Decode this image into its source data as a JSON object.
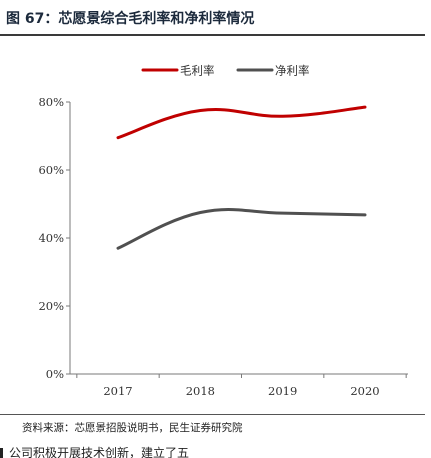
{
  "figure": {
    "title": "图 67：芯愿景综合毛利率和净利率情况",
    "source": "资料来源：芯愿景招股说明书，民生证券研究院",
    "next_heading": "公司积极开展技术创新，建立了五"
  },
  "chart_data": {
    "type": "line",
    "title": "",
    "xlabel": "",
    "ylabel": "",
    "categories": [
      "2017",
      "2018",
      "2019",
      "2020"
    ],
    "y_ticks": [
      "0%",
      "20%",
      "40%",
      "60%",
      "80%"
    ],
    "ylim": [
      0,
      80
    ],
    "grid": false,
    "legend": "top-center",
    "series": [
      {
        "name": "毛利率",
        "values": [
          69.5,
          77.5,
          75.8,
          78.5
        ],
        "color": "#c00000"
      },
      {
        "name": "净利率",
        "values": [
          37.0,
          47.5,
          47.3,
          46.8
        ],
        "color": "#505050"
      }
    ]
  }
}
